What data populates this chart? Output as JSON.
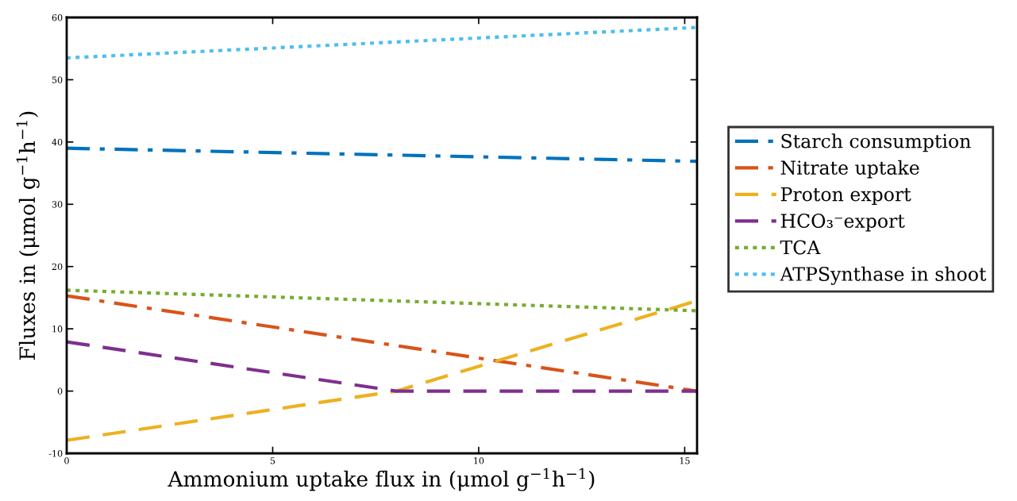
{
  "chart_data": {
    "type": "line",
    "xlabel": "Ammonium uptake flux in (μmol g$^{−1}$h$^{−1}$)",
    "ylabel": "Fluxes in (μmol g$^{−1}$h$^{−1}$)",
    "xlim": [
      0,
      15.3
    ],
    "ylim": [
      -10,
      60
    ],
    "xticks": [
      0,
      5,
      10,
      15
    ],
    "yticks": [
      -10,
      0,
      10,
      20,
      30,
      40,
      50,
      60
    ],
    "grid": false,
    "legend": "right",
    "marker": "none",
    "series": [
      {
        "name": "Starch consumption",
        "color": "#0072bd",
        "line_style": "dashdot",
        "x": [
          0,
          15.3
        ],
        "values": [
          39.0,
          36.9
        ]
      },
      {
        "name": "Nitrate uptake",
        "color": "#d95319",
        "line_style": "dashdot",
        "x": [
          0,
          15.3
        ],
        "values": [
          15.3,
          0
        ]
      },
      {
        "name": "Proton export",
        "color": "#edb120",
        "line_style": "dashed",
        "x": [
          0,
          8,
          15.3
        ],
        "values": [
          -7.9,
          0,
          14.5
        ]
      },
      {
        "name": "HCO₃⁻export",
        "color": "#7e2f8e",
        "line_style": "dashed",
        "x": [
          0,
          8,
          15.3
        ],
        "values": [
          7.9,
          0,
          0
        ]
      },
      {
        "name": "TCA",
        "color": "#77ac30",
        "line_style": "dotted",
        "x": [
          0,
          15.3
        ],
        "values": [
          16.2,
          12.9
        ]
      },
      {
        "name": "ATPSynthase in shoot",
        "color": "#4dbeee",
        "line_style": "dotted",
        "x": [
          0,
          15.3
        ],
        "values": [
          53.5,
          58.4
        ]
      }
    ]
  }
}
